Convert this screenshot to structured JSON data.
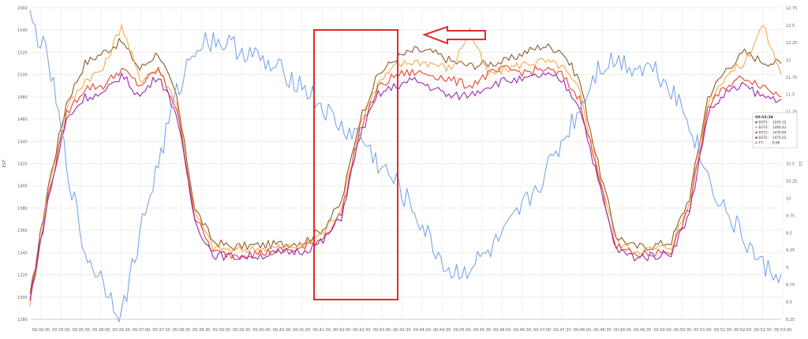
{
  "chart_data": {
    "type": "line",
    "y_left_label": "EGT",
    "y_right_label": "T7",
    "y_left_ticks": [
      "1560",
      "1540",
      "1520",
      "1500",
      "1480",
      "1460",
      "1440",
      "1420",
      "1400",
      "1380",
      "1360",
      "1340",
      "1320",
      "1300",
      "1280"
    ],
    "y_right_ticks": [
      "12.75",
      "12.5",
      "12.25",
      "12",
      "11.75",
      "11.5",
      "11.25",
      "11",
      "10.75",
      "10.5",
      "10.25",
      "10",
      "9.75",
      "9.5",
      "9.25",
      "9",
      "8.75",
      "8.5",
      "8.25"
    ],
    "x_ticks": [
      "00:34:30",
      "00:35:00",
      "00:35:30",
      "00:36:00",
      "00:36:30",
      "00:37:00",
      "00:37:30",
      "00:38:00",
      "00:38:30",
      "00:39:00",
      "00:39:30",
      "00:40:00",
      "00:40:30",
      "00:41:00",
      "00:41:30",
      "00:42:00",
      "00:42:30",
      "00:43:00",
      "00:43:30",
      "00:44:00",
      "00:44:30",
      "00:45:00",
      "00:45:30",
      "00:46:00",
      "00:46:30",
      "00:47:00",
      "00:47:30",
      "00:48:00",
      "00:48:30",
      "00:49:00",
      "00:49:30",
      "00:50:00",
      "00:50:30",
      "00:51:00",
      "00:51:30",
      "00:52:00",
      "00:52:30",
      "00:53:00"
    ],
    "ylim_left": [
      1280,
      1560
    ],
    "ylim_right": [
      8.25,
      12.75
    ],
    "grid": true,
    "series": [
      {
        "name": "EGT3",
        "axis": "left",
        "color": "#8b5a2b",
        "values": [
          1300,
          1400,
          1475,
          1510,
          1520,
          1530,
          1505,
          1520,
          1480,
          1380,
          1350,
          1345,
          1346,
          1347,
          1348,
          1350,
          1362,
          1385,
          1460,
          1500,
          1515,
          1522,
          1520,
          1512,
          1508,
          1510,
          1512,
          1520,
          1526,
          1522,
          1495,
          1420,
          1355,
          1345,
          1346,
          1350,
          1390,
          1480,
          1505,
          1520,
          1512,
          1510
        ]
      },
      {
        "name": "EGT4",
        "axis": "left",
        "color": "#f5a94a",
        "values": [
          1295,
          1395,
          1470,
          1495,
          1505,
          1545,
          1495,
          1505,
          1475,
          1375,
          1345,
          1342,
          1343,
          1344,
          1345,
          1347,
          1358,
          1380,
          1455,
          1492,
          1508,
          1512,
          1510,
          1505,
          1540,
          1500,
          1505,
          1510,
          1512,
          1508,
          1485,
          1415,
          1350,
          1342,
          1343,
          1346,
          1385,
          1475,
          1500,
          1510,
          1545,
          1500
        ]
      },
      {
        "name": "EGT1",
        "axis": "left",
        "color": "#e8452c",
        "values": [
          1298,
          1390,
          1465,
          1488,
          1490,
          1505,
          1490,
          1505,
          1470,
          1372,
          1340,
          1338,
          1339,
          1340,
          1342,
          1344,
          1354,
          1375,
          1450,
          1488,
          1500,
          1502,
          1500,
          1495,
          1490,
          1500,
          1505,
          1502,
          1505,
          1500,
          1478,
          1410,
          1345,
          1338,
          1339,
          1342,
          1380,
          1470,
          1490,
          1498,
          1490,
          1480
        ]
      },
      {
        "name": "EGT2",
        "axis": "left",
        "color": "#9c27b0",
        "values": [
          1296,
          1388,
          1460,
          1480,
          1482,
          1500,
          1480,
          1500,
          1465,
          1368,
          1338,
          1336,
          1337,
          1338,
          1340,
          1342,
          1350,
          1372,
          1445,
          1482,
          1490,
          1495,
          1488,
          1480,
          1482,
          1490,
          1495,
          1495,
          1500,
          1495,
          1472,
          1405,
          1342,
          1336,
          1337,
          1340,
          1375,
          1465,
          1484,
          1490,
          1480,
          1478
        ]
      },
      {
        "name": "T7",
        "axis": "right",
        "color": "#7aa6e8",
        "values": [
          12.6,
          12.0,
          10.5,
          9.2,
          8.8,
          8.3,
          9.5,
          10.5,
          11.5,
          12.2,
          12.3,
          12.2,
          12.1,
          11.9,
          11.8,
          11.6,
          11.3,
          11.0,
          10.9,
          10.5,
          10.2,
          9.8,
          9.3,
          8.9,
          9.0,
          9.2,
          9.5,
          9.9,
          10.3,
          10.8,
          11.3,
          11.9,
          12.0,
          11.9,
          11.9,
          11.6,
          11.1,
          10.3,
          9.8,
          9.4,
          9.0,
          8.9
        ]
      }
    ],
    "tooltip": {
      "time": "00:53:38",
      "rows": [
        {
          "name": "EGT3",
          "value": "1505.15",
          "color": "#8b5a2b"
        },
        {
          "name": "EGT4",
          "value": "1490.43",
          "color": "#f5a94a"
        },
        {
          "name": "EGT1",
          "value": "1476.64",
          "color": "#e8452c"
        },
        {
          "name": "EGT2",
          "value": "1475.03",
          "color": "#9c27b0"
        },
        {
          "name": "T7",
          "value": "8.86",
          "color": "#7aa6e8"
        }
      ]
    },
    "annotations": {
      "highlight_box": true,
      "arrow": true,
      "box_color": "#e02b2b"
    }
  }
}
